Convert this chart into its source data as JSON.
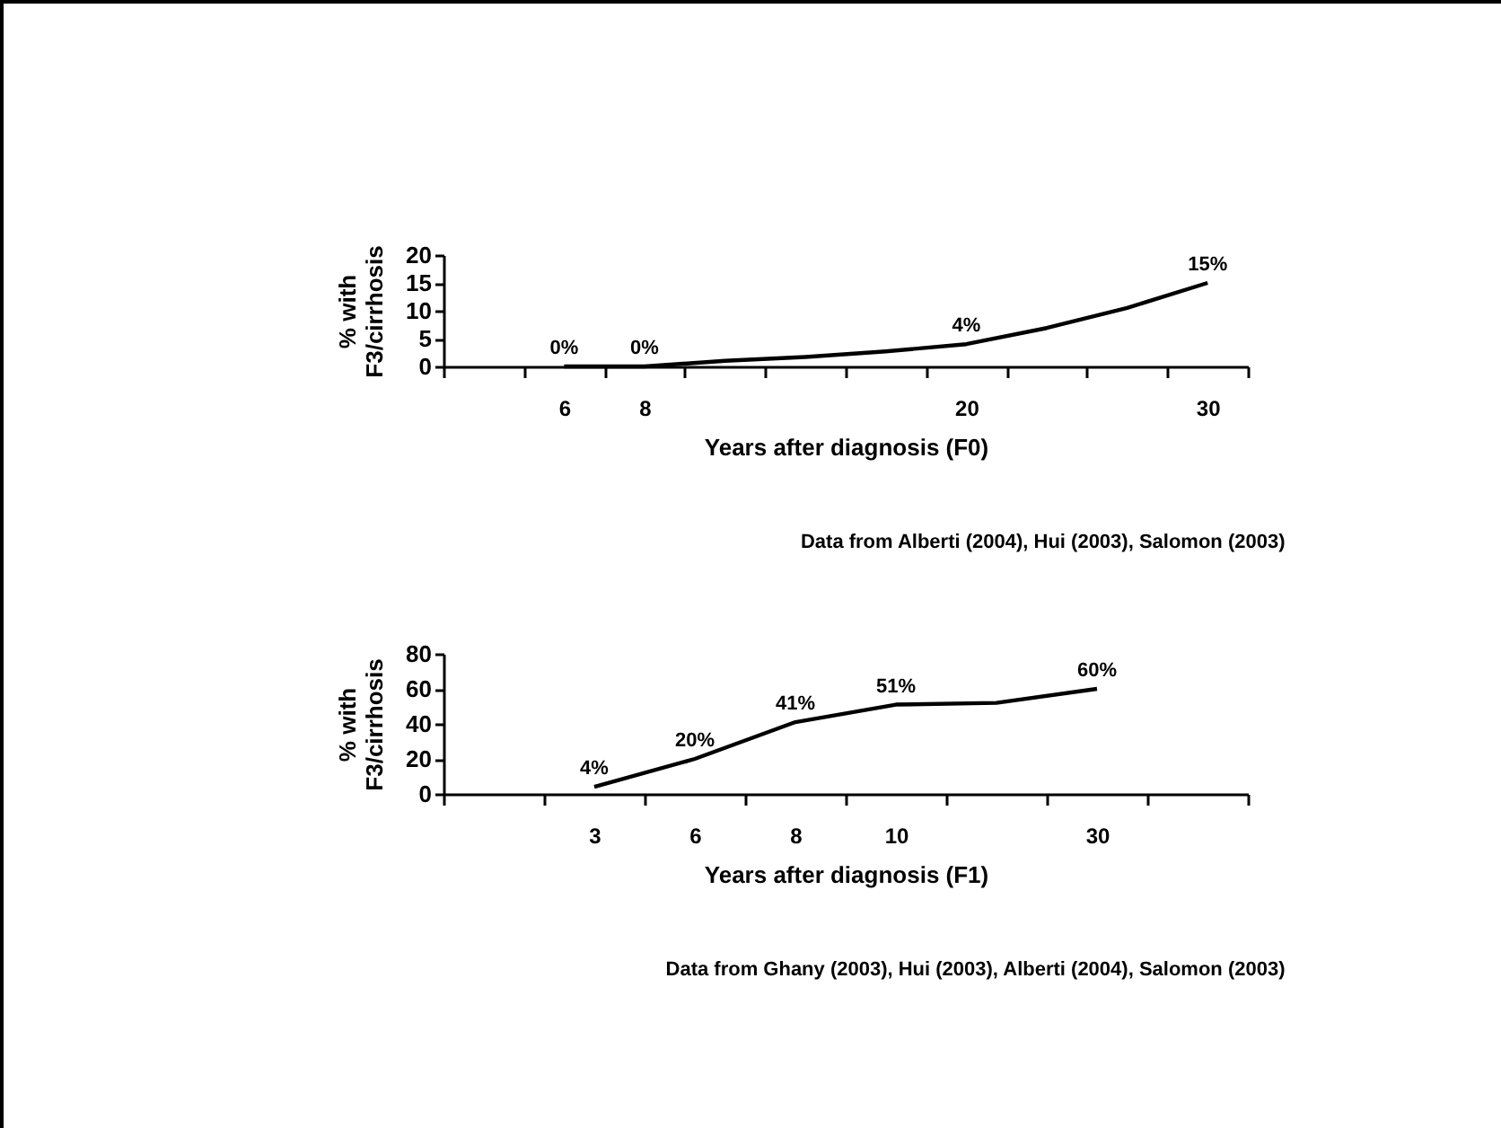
{
  "chart_data": [
    {
      "type": "line",
      "categories": [
        null,
        "6",
        "8",
        null,
        null,
        null,
        "20",
        null,
        null,
        "30"
      ],
      "series": [
        {
          "color": "#000000",
          "values": [
            null,
            0,
            0,
            1,
            1.7,
            2.7,
            4,
            6.9,
            10.5,
            15
          ],
          "value_labels": [
            null,
            "0%",
            "0%",
            null,
            null,
            null,
            "4%",
            null,
            null,
            "15%"
          ]
        }
      ],
      "ylim": [
        0,
        20
      ],
      "yticks": [
        0,
        5,
        10,
        15,
        20
      ],
      "xlabel": "Years after diagnosis (F0)",
      "ylabel": "% with\nF3/cirrhosis",
      "grid": false,
      "annotations": [
        "Data from Alberti (2004), Hui (2003), Salomon (2003)"
      ]
    },
    {
      "type": "line",
      "categories": [
        null,
        "3",
        "6",
        "8",
        "10",
        null,
        "30",
        null
      ],
      "series": [
        {
          "color": "#000000",
          "values": [
            null,
            4,
            20,
            41,
            51,
            52,
            60,
            null
          ],
          "value_labels": [
            null,
            "4%",
            "20%",
            "41%",
            "51%",
            null,
            "60%",
            null
          ]
        }
      ],
      "ylim": [
        0,
        80
      ],
      "yticks": [
        0,
        20,
        40,
        60,
        80
      ],
      "xlabel": "Years after diagnosis (F1)",
      "ylabel": "% with\nF3/cirrhosis",
      "grid": false,
      "annotations": [
        "Data from Ghany (2003), Hui (2003), Alberti (2004), Salomon (2003)"
      ]
    }
  ]
}
